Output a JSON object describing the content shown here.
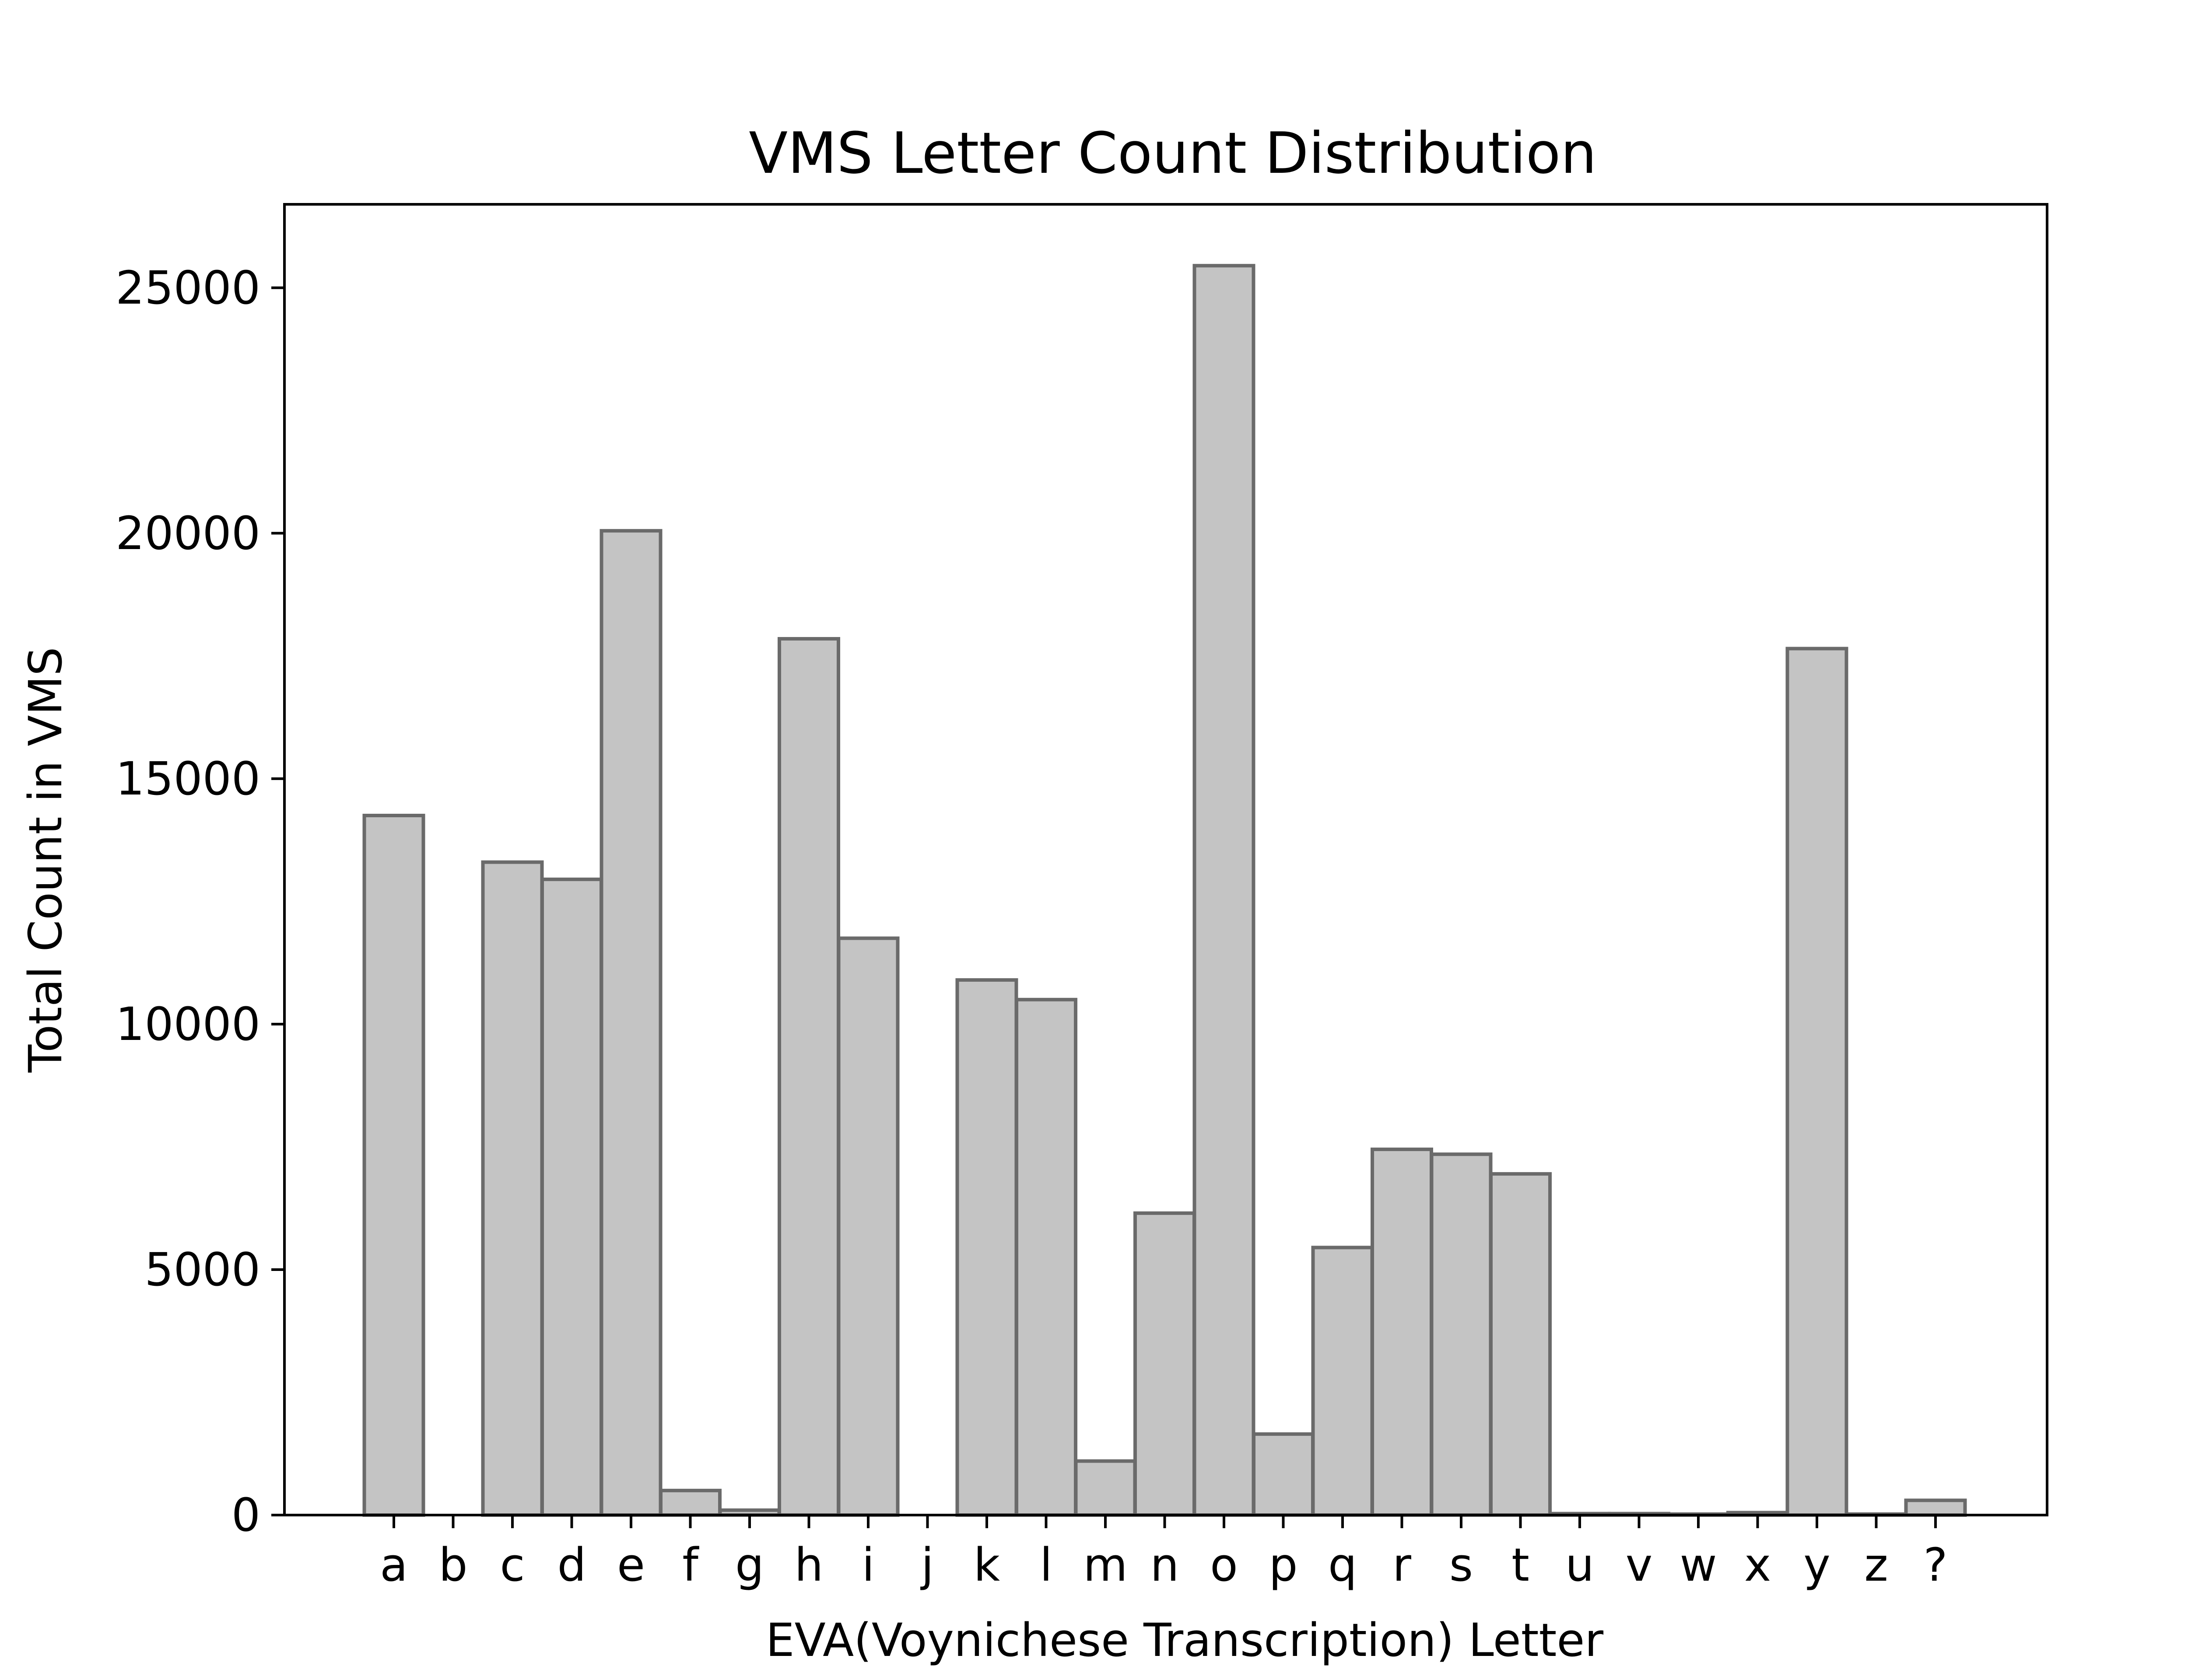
{
  "chart_data": {
    "type": "bar",
    "title": "VMS Letter Count Distribution",
    "xlabel": "EVA(Voynichese Transcription) Letter",
    "ylabel": "Total Count in VMS",
    "categories": [
      "a",
      "b",
      "c",
      "d",
      "e",
      "f",
      "g",
      "h",
      "i",
      "j",
      "k",
      "l",
      "m",
      "n",
      "o",
      "p",
      "q",
      "r",
      "s",
      "t",
      "u",
      "v",
      "w",
      "x",
      "y",
      "z",
      "?"
    ],
    "values": [
      14250,
      0,
      13300,
      12950,
      20050,
      500,
      100,
      17850,
      11750,
      0,
      10900,
      10500,
      1100,
      6150,
      25450,
      1650,
      5450,
      7450,
      7350,
      6950,
      30,
      30,
      20,
      50,
      17650,
      20,
      300
    ],
    "ylim": [
      0,
      26700
    ],
    "yticks": [
      0,
      5000,
      10000,
      15000,
      20000,
      25000
    ],
    "grid": false,
    "colors": {
      "bar_fill": "#c4c4c4",
      "bar_edge": "#6a6a6a"
    }
  }
}
